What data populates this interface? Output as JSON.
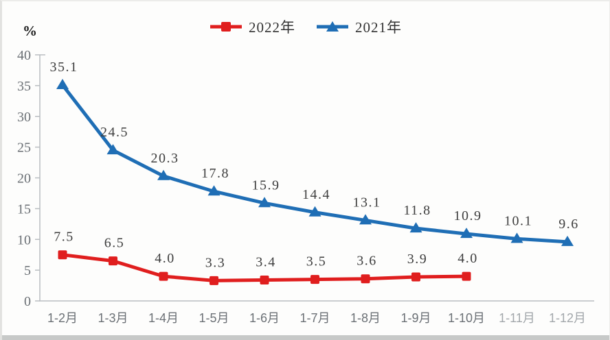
{
  "chart_data": {
    "type": "line",
    "title": "",
    "xlabel": "",
    "ylabel": "%",
    "ylim": [
      0,
      40
    ],
    "yticks": [
      0,
      5,
      10,
      15,
      20,
      25,
      30,
      35,
      40
    ],
    "grid": false,
    "legend_position": "top-center",
    "categories": [
      "1-2月",
      "1-3月",
      "1-4月",
      "1-5月",
      "1-6月",
      "1-7月",
      "1-8月",
      "1-9月",
      "1-10月",
      "1-11月",
      "1-12月"
    ],
    "muted_category_indexes": [
      9,
      10
    ],
    "series": [
      {
        "name": "2022年",
        "color": "#e01e1e",
        "marker": "square",
        "values": [
          7.5,
          6.5,
          4.0,
          3.3,
          3.4,
          3.5,
          3.6,
          3.9,
          4.0
        ]
      },
      {
        "name": "2021年",
        "color": "#1f6eb5",
        "marker": "triangle",
        "values": [
          35.1,
          24.5,
          20.3,
          17.8,
          15.9,
          14.4,
          13.1,
          11.8,
          10.9,
          10.1,
          9.6
        ]
      }
    ],
    "colors": {
      "axis": "#b9bdc1",
      "tick_label": "#6b7075",
      "muted_tick_label": "#a2a7ab",
      "value_label": "#3d3d3d",
      "ylabel_color": "#1a1a1a",
      "legend_text": "#333333"
    }
  }
}
